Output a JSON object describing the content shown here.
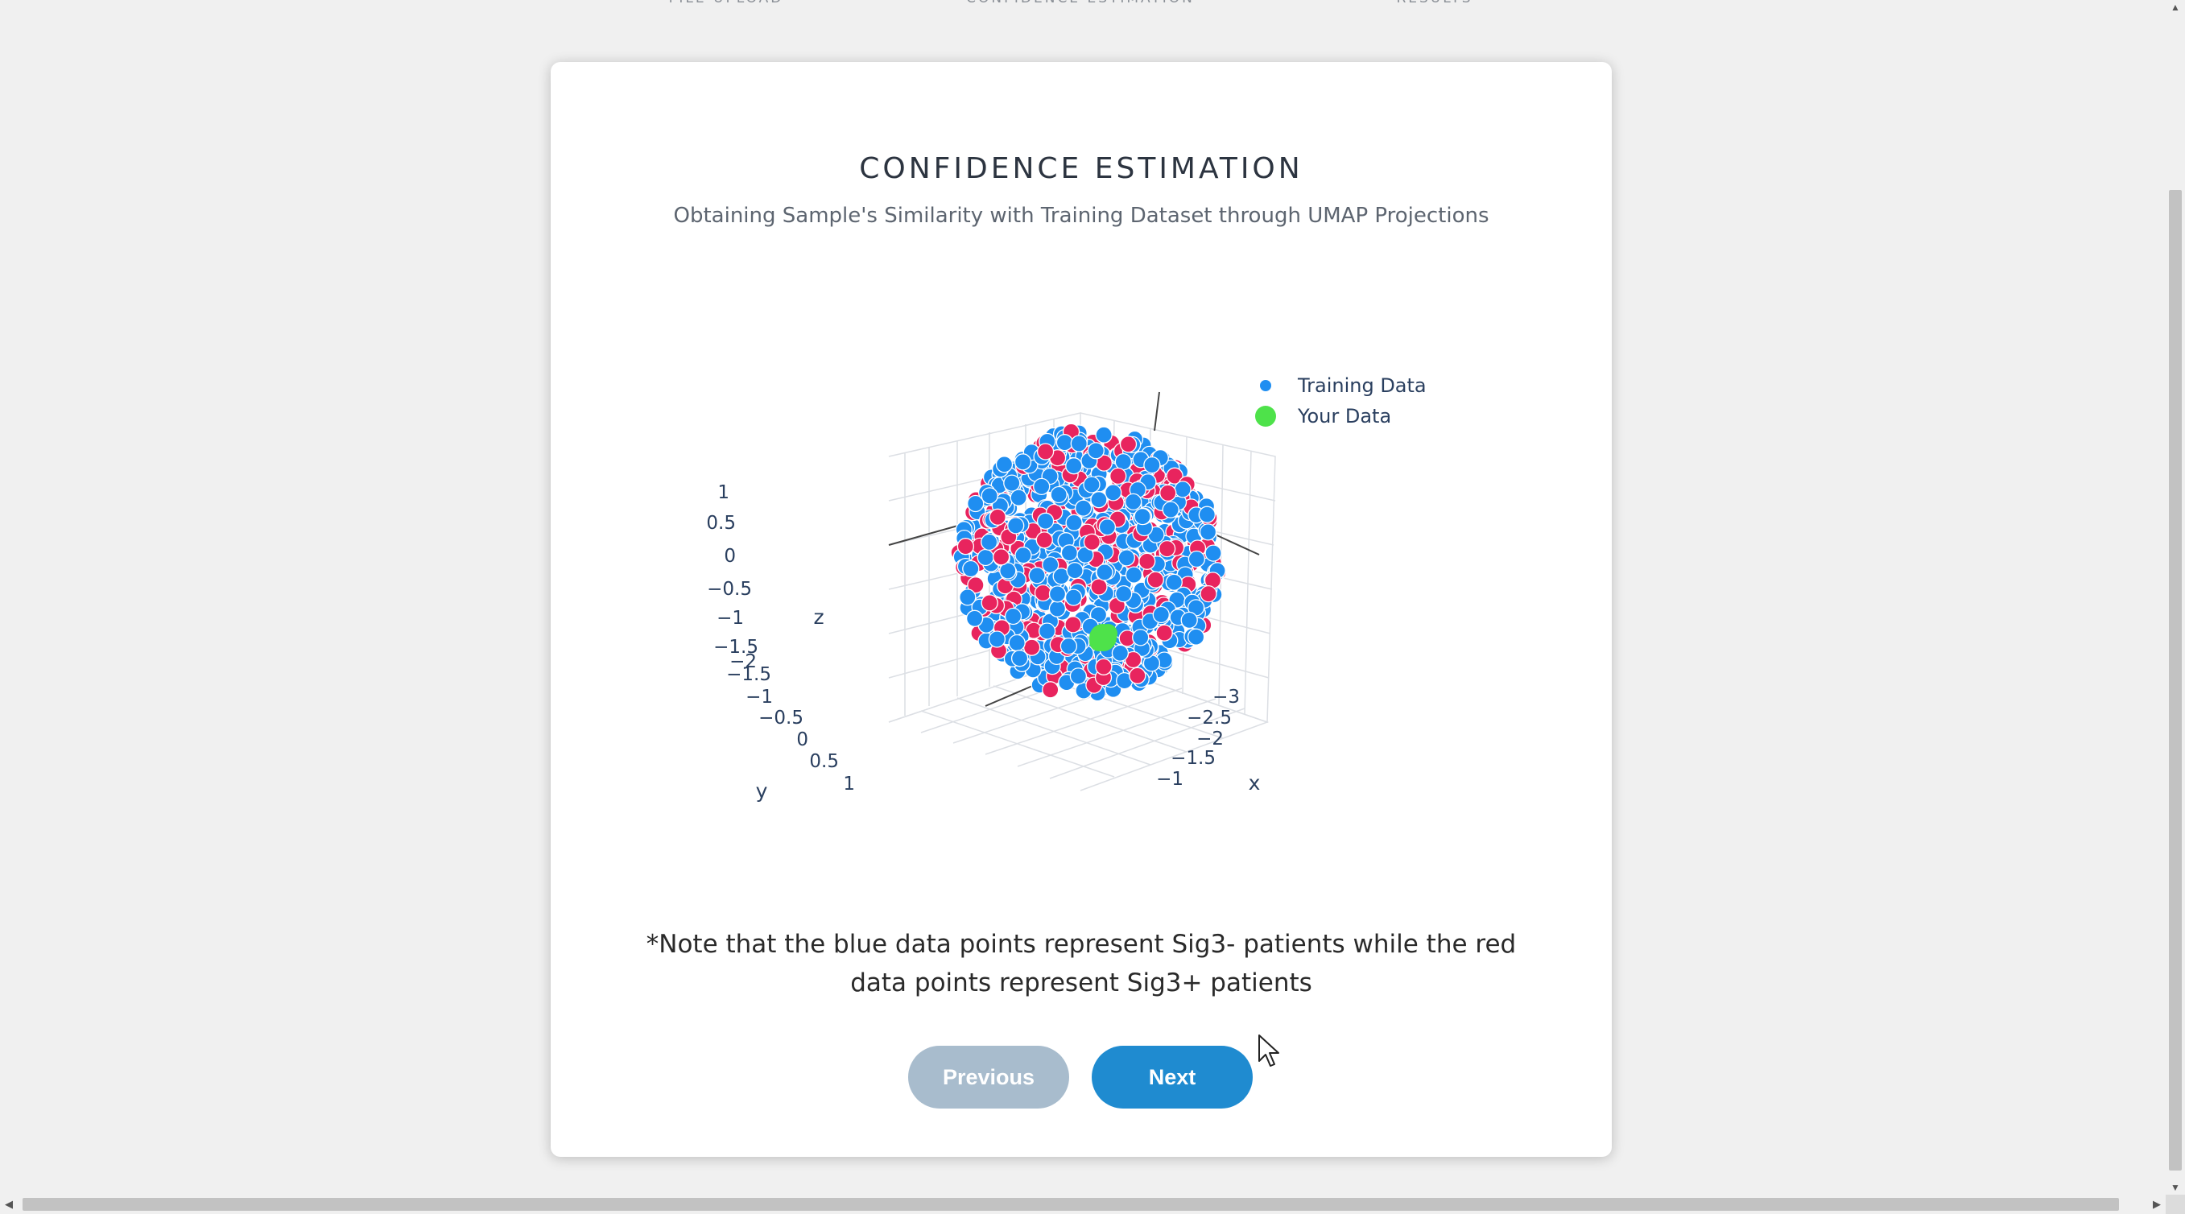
{
  "steps": [
    {
      "label": "FILE UPLOAD"
    },
    {
      "label": "CONFIDENCE ESTIMATION"
    },
    {
      "label": "RESULTS"
    }
  ],
  "card": {
    "title": "CONFIDENCE ESTIMATION",
    "subtitle": "Obtaining Sample's Similarity with Training Dataset through UMAP Projections",
    "note": "*Note that the blue data points represent Sig3- patients while the red data points represent Sig3+ patients"
  },
  "buttons": {
    "previous": "Previous",
    "next": "Next"
  },
  "chart_data": {
    "type": "scatter",
    "dimensions": 3,
    "legend": [
      "Training Data",
      "Your Data"
    ],
    "legend_position": "top-right",
    "axes": {
      "x": {
        "title": "x",
        "ticks": [
          "−3",
          "−2.5",
          "−2",
          "−1.5",
          "−1"
        ]
      },
      "y": {
        "title": "y",
        "ticks": [
          "−2",
          "−1.5",
          "−1",
          "−0.5",
          "0",
          "0.5",
          "1"
        ]
      },
      "z": {
        "title": "z",
        "ticks": [
          "1",
          "0.5",
          "0",
          "−0.5",
          "−1",
          "−1.5"
        ]
      }
    },
    "series": [
      {
        "name": "Training Data",
        "color": "#1f8ef1",
        "secondary_color": "#e8245e"
      },
      {
        "name": "Your Data",
        "color": "#4ee24a"
      }
    ],
    "colors": {
      "sig3_negative": "#1f8ef1",
      "sig3_positive": "#e8245e",
      "your_data": "#4ee24a"
    }
  }
}
